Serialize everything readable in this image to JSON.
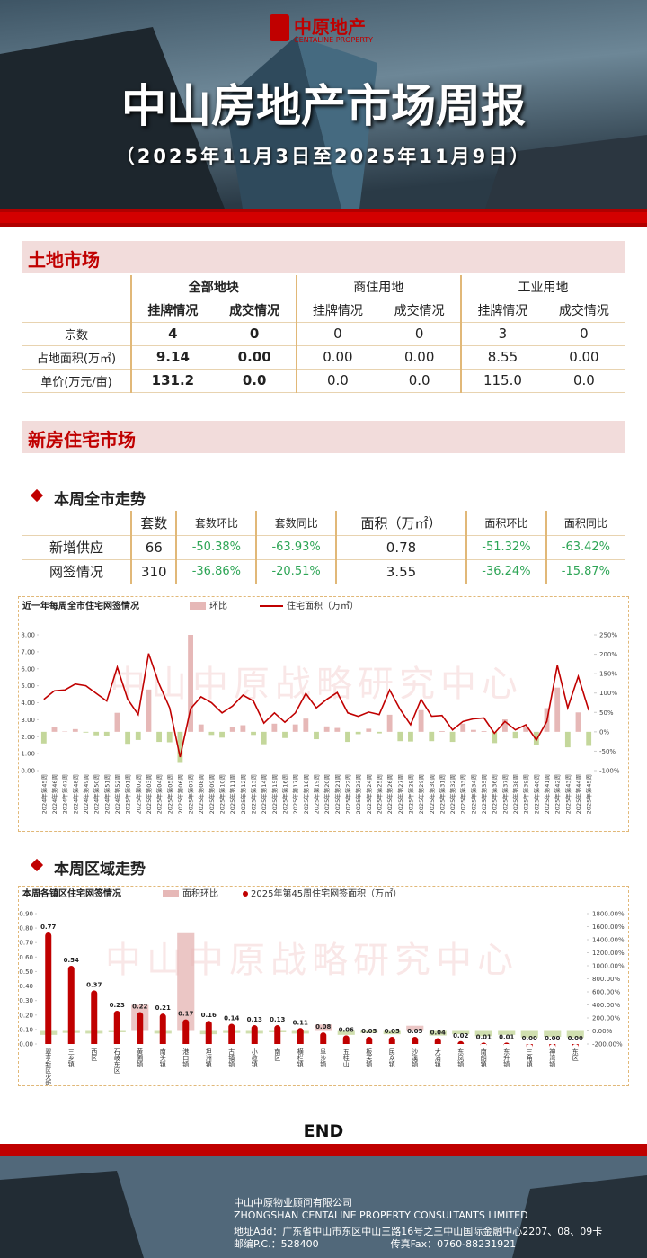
{
  "header": {
    "logo_cn": "中原地产",
    "logo_en": "CENTALINE PROPERTY",
    "title": "中山房地产市场周报",
    "subtitle": "（2025年11月3日至2025年11月9日）"
  },
  "land": {
    "heading": "土地市场",
    "groups": [
      "全部地块",
      "商住用地",
      "工业用地"
    ],
    "subheads": [
      "挂牌情况",
      "成交情况",
      "挂牌情况",
      "成交情况",
      "挂牌情况",
      "成交情况"
    ],
    "rows": [
      [
        "宗数",
        "4",
        "0",
        "0",
        "0",
        "3",
        "0"
      ],
      [
        "占地面积(万㎡)",
        "9.14",
        "0.00",
        "0.00",
        "0.00",
        "8.55",
        "0.00"
      ],
      [
        "单价(万元/亩)",
        "131.2",
        "0.0",
        "0.0",
        "0.0",
        "115.0",
        "0.0"
      ]
    ]
  },
  "newhome": {
    "heading": "新房住宅市场",
    "city_heading": "本周全市走势",
    "headers": [
      "套数",
      "套数环比",
      "套数同比",
      "面积（万㎡）",
      "面积环比",
      "面积同比"
    ],
    "rows": [
      [
        "新增供应",
        "66",
        "-50.38%",
        "-63.93%",
        "0.78",
        "-51.32%",
        "-63.42%"
      ],
      [
        "网签情况",
        "310",
        "-36.86%",
        "-20.51%",
        "3.55",
        "-36.24%",
        "-15.87%"
      ]
    ],
    "district_heading": "本周区域走势"
  },
  "chart_data": [
    {
      "type": "bar_line",
      "title": "近一年每周全市住宅网签情况",
      "watermark": "中山中原战略研究中心",
      "categories": [
        "2024年第45周",
        "2024年第46周",
        "2024年第47周",
        "2024年第48周",
        "2024年第49周",
        "2024年第50周",
        "2024年第51周",
        "2024年第52周",
        "2025年第01周",
        "2025年第02周",
        "2025年第03周",
        "2025年第04周",
        "2025年第05周",
        "2025年第06周",
        "2025年第07周",
        "2025年第08周",
        "2025年第09周",
        "2025年第10周",
        "2025年第11周",
        "2025年第12周",
        "2025年第13周",
        "2025年第14周",
        "2025年第15周",
        "2025年第16周",
        "2025年第17周",
        "2025年第18周",
        "2025年第19周",
        "2025年第20周",
        "2025年第21周",
        "2025年第22周",
        "2025年第23周",
        "2025年第24周",
        "2025年第25周",
        "2025年第26周",
        "2025年第27周",
        "2025年第28周",
        "2025年第29周",
        "2025年第30周",
        "2025年第31周",
        "2025年第32周",
        "2025年第33周",
        "2025年第34周",
        "2025年第35周",
        "2025年第36周",
        "2025年第37周",
        "2025年第38周",
        "2025年第39周",
        "2025年第40周",
        "2025年第41周",
        "2025年第42周",
        "2025年第43周",
        "2025年第44周",
        "2025年第45周"
      ],
      "series": [
        {
          "name": "环比",
          "color": "#e6b8b7",
          "negative_color": "#c4d79b",
          "axis": "y2",
          "values": [
            -30,
            12,
            1,
            7,
            -2,
            -9,
            -10,
            49,
            -31,
            -21,
            109,
            -26,
            -27,
            -78,
            356,
            19,
            -8,
            -15,
            12,
            17,
            -8,
            -32,
            21,
            -16,
            19,
            34,
            -19,
            14,
            10,
            -26,
            -6,
            8,
            -4,
            44,
            -24,
            -25,
            56,
            -24,
            2,
            -26,
            21,
            5,
            2,
            -29,
            32,
            -17,
            13,
            -33,
            61,
            114,
            -40,
            50,
            -36.24
          ]
        },
        {
          "name": "住宅面积（万㎡）",
          "color": "#c00000",
          "values": [
            4.2,
            4.7,
            4.75,
            5.1,
            5.0,
            4.55,
            4.1,
            6.1,
            4.2,
            3.3,
            6.9,
            5.1,
            3.7,
            0.8,
            3.65,
            4.35,
            4.0,
            3.4,
            3.8,
            4.45,
            4.1,
            2.8,
            3.4,
            2.85,
            3.4,
            4.55,
            3.7,
            4.2,
            4.6,
            3.4,
            3.2,
            3.45,
            3.3,
            4.75,
            3.6,
            2.7,
            4.2,
            3.2,
            3.25,
            2.4,
            2.9,
            3.05,
            3.1,
            2.2,
            2.9,
            2.4,
            2.7,
            1.8,
            2.9,
            6.2,
            3.7,
            5.55,
            3.55
          ]
        }
      ],
      "ylim": [
        0,
        8
      ],
      "yticks": [
        {
          "value": 0,
          "label": "0.00"
        },
        {
          "value": 1,
          "label": "1.00"
        },
        {
          "value": 2,
          "label": "2.00"
        },
        {
          "value": 3,
          "label": "3.00"
        },
        {
          "value": 4,
          "label": "4.00"
        },
        {
          "value": 5,
          "label": "5.00"
        },
        {
          "value": 6,
          "label": "6.00"
        },
        {
          "value": 7,
          "label": "7.00"
        },
        {
          "value": 8,
          "label": "8.00"
        }
      ],
      "y2lim": [
        -100,
        250
      ],
      "y2ticks": [
        {
          "value": -100,
          "label": "-100%"
        },
        {
          "value": -50,
          "label": "-50%"
        },
        {
          "value": 0,
          "label": "0%"
        },
        {
          "value": 50,
          "label": "50%"
        },
        {
          "value": 100,
          "label": "100%"
        },
        {
          "value": 150,
          "label": "150%"
        },
        {
          "value": 200,
          "label": "200%"
        },
        {
          "value": 250,
          "label": "250%"
        }
      ]
    },
    {
      "type": "bar_lollipop",
      "title": "本周各镇区住宅网签情况",
      "watermark": "中山中原战略研究中心",
      "categories": [
        "翠亨新区火炬",
        "三乡镇",
        "西区",
        "石岐东区",
        "黄圃镇",
        "南头镇",
        "港口镇",
        "坦洲镇",
        "古镇镇",
        "小榄镇",
        "南区",
        "横栏镇",
        "阜沙镇",
        "五桂山",
        "板芙镇",
        "民众镇",
        "沙溪镇",
        "大涌镇",
        "东凤镇",
        "南朗镇",
        "东升镇",
        "三角镇",
        "神湾镇",
        "东区"
      ],
      "series": [
        {
          "name": "面积环比",
          "color": "#e6b8b7",
          "negative_color": "#c4d79b",
          "axis": "y2",
          "values": [
            -60,
            -30,
            -40,
            -20,
            400,
            -40,
            1500,
            -50,
            -30,
            -40,
            -20,
            -40,
            100,
            -60,
            -30,
            -50,
            80,
            -70,
            -50,
            -80,
            -60,
            -100,
            -90,
            -100
          ]
        },
        {
          "name": "2025年第45周住宅网签面积（万㎡）",
          "color": "#c00000",
          "values": [
            0.77,
            0.54,
            0.37,
            0.23,
            0.22,
            0.21,
            0.17,
            0.16,
            0.14,
            0.13,
            0.13,
            0.11,
            0.08,
            0.06,
            0.05,
            0.05,
            0.05,
            0.04,
            0.02,
            0.01,
            0.01,
            0,
            0,
            0
          ],
          "value_labels": [
            "0.77",
            "0.54",
            "0.37",
            "0.23",
            "0.22",
            "0.21",
            "0.17",
            "0.16",
            "0.14",
            "0.13",
            "0.13",
            "0.11",
            "0.08",
            "0.06",
            "0.05",
            "0.05",
            "0.05",
            "0.04",
            "0.02",
            "0.01",
            "0.01",
            "0.00",
            "0.00",
            "0.00"
          ]
        }
      ],
      "ylim": [
        0,
        0.9
      ],
      "yticks": [
        {
          "value": 0,
          "label": "0.00"
        },
        {
          "value": 0.1,
          "label": "0.10"
        },
        {
          "value": 0.2,
          "label": "0.20"
        },
        {
          "value": 0.3,
          "label": "0.30"
        },
        {
          "value": 0.4,
          "label": "0.40"
        },
        {
          "value": 0.5,
          "label": "0.50"
        },
        {
          "value": 0.6,
          "label": "0.60"
        },
        {
          "value": 0.7,
          "label": "0.70"
        },
        {
          "value": 0.8,
          "label": "0.80"
        },
        {
          "value": 0.9,
          "label": "0.90"
        }
      ],
      "y2lim": [
        -200,
        1800
      ],
      "y2ticks": [
        {
          "value": -200,
          "label": "-200.00%"
        },
        {
          "value": 0,
          "label": "0.00%"
        },
        {
          "value": 200,
          "label": "200.00%"
        },
        {
          "value": 400,
          "label": "400.00%"
        },
        {
          "value": 600,
          "label": "600.00%"
        },
        {
          "value": 800,
          "label": "800.00%"
        },
        {
          "value": 1000,
          "label": "1000.00%"
        },
        {
          "value": 1200,
          "label": "1200.00%"
        },
        {
          "value": 1400,
          "label": "1400.00%"
        },
        {
          "value": 1600,
          "label": "1600.00%"
        },
        {
          "value": 1800,
          "label": "1800.00%"
        }
      ]
    }
  ],
  "end": "END",
  "footer": {
    "company_cn": "中山中原物业顾问有限公司",
    "company_en": "ZHONGSHAN CENTALINE PROPERTY CONSULTANTS LIMITED",
    "address": "地址Add：广东省中山市东区中山三路16号之三中山国际金融中心2207、08、09卡",
    "postcode": "邮编P.C.：528400",
    "fax": "传真Fax：0760-88231921"
  }
}
